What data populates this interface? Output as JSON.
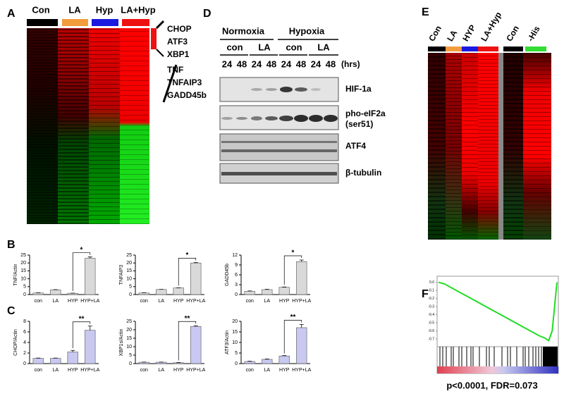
{
  "panel_labels": [
    "A",
    "B",
    "C",
    "D",
    "E",
    "F"
  ],
  "panel_a": {
    "groups": [
      "Con",
      "LA",
      "Hyp",
      "LA+Hyp"
    ],
    "genes": [
      "CHOP",
      "ATF3",
      "XBP1",
      "TNF",
      "TNFAIP3",
      "GADD45b"
    ]
  },
  "panel_d": {
    "conditions": [
      "Normoxia",
      "Hypoxia"
    ],
    "treatments": [
      "con",
      "LA",
      "con",
      "LA"
    ],
    "times": [
      "24",
      "48",
      "24",
      "48",
      "24",
      "48",
      "24",
      "48"
    ],
    "time_unit": "(hrs)",
    "blots": [
      "HIF-1a",
      "pho-eIF2a",
      "ATF4",
      "β-tubulin"
    ],
    "blot_note": "(ser51)"
  },
  "panel_e": {
    "groups": [
      "Con",
      "LA",
      "HYP",
      "LA+Hyp",
      "Con",
      "-His"
    ]
  },
  "panel_f_stats": "p<0.0001, FDR=0.073",
  "chart_data": [
    {
      "type": "bar",
      "ylabel": "TNF/Actin",
      "categories": [
        "con",
        "LA",
        "HYP",
        "HYP+LA"
      ],
      "values": [
        1,
        3,
        0.8,
        23
      ],
      "errors": [
        0.1,
        0.1,
        0.1,
        0.8
      ],
      "color": "#d9d9d9",
      "ylim": [
        0,
        25
      ],
      "yticks": [
        0,
        5,
        10,
        15,
        20,
        25
      ],
      "annotation": "*"
    },
    {
      "type": "bar",
      "ylabel": "TNFAIP3",
      "categories": [
        "con",
        "LA",
        "HYP",
        "HYP+LA"
      ],
      "values": [
        1,
        3.2,
        4.2,
        20
      ],
      "errors": [
        0.1,
        0.1,
        0.1,
        0.3
      ],
      "color": "#d9d9d9",
      "ylim": [
        0,
        25
      ],
      "yticks": [
        0,
        5,
        10,
        15,
        20,
        25
      ],
      "annotation": "*"
    },
    {
      "type": "bar",
      "ylabel": "GADD45b",
      "categories": [
        "con",
        "LA",
        "HYP",
        "HYP+LA"
      ],
      "values": [
        1,
        1.5,
        2.2,
        10
      ],
      "errors": [
        0.1,
        0.1,
        0.1,
        0.5
      ],
      "color": "#d9d9d9",
      "ylim": [
        0,
        12
      ],
      "yticks": [
        0,
        3,
        6,
        9,
        12
      ],
      "annotation": "*"
    },
    {
      "type": "bar",
      "ylabel": "CHOP/Actin",
      "categories": [
        "con",
        "LA",
        "HYP",
        "HYP+LA"
      ],
      "values": [
        1,
        1,
        2.2,
        6.3
      ],
      "errors": [
        0.05,
        0.05,
        0.3,
        0.8
      ],
      "color": "#c8c8f0",
      "ylim": [
        0,
        8
      ],
      "yticks": [
        0,
        2,
        4,
        6,
        8
      ],
      "annotation": "**"
    },
    {
      "type": "bar",
      "ylabel": "XBP1s/Actin",
      "categories": [
        "con",
        "LA",
        "HYP",
        "HYP+LA"
      ],
      "values": [
        0.8,
        0.8,
        0.5,
        22
      ],
      "errors": [
        0.1,
        0.1,
        0.1,
        0.4
      ],
      "color": "#c8c8f0",
      "ylim": [
        0,
        25
      ],
      "yticks": [
        0,
        5,
        10,
        15,
        20,
        25
      ],
      "annotation": "**"
    },
    {
      "type": "bar",
      "ylabel": "ATF3/Actin",
      "categories": [
        "con",
        "LA",
        "HYP",
        "HYP+LA"
      ],
      "values": [
        1,
        2,
        3.6,
        17
      ],
      "errors": [
        0.1,
        0.2,
        0.2,
        1.5
      ],
      "color": "#c8c8f0",
      "ylim": [
        0,
        20
      ],
      "yticks": [
        0,
        5,
        10,
        15,
        20
      ],
      "annotation": "**"
    },
    {
      "type": "line",
      "x": [
        0,
        5,
        10,
        15,
        20,
        25,
        30,
        35,
        40,
        45,
        50,
        55,
        60,
        65,
        70,
        75,
        80,
        85,
        90,
        93,
        96,
        100
      ],
      "values": [
        0,
        -0.02,
        -0.06,
        -0.1,
        -0.14,
        -0.18,
        -0.22,
        -0.26,
        -0.3,
        -0.34,
        -0.38,
        -0.42,
        -0.46,
        -0.5,
        -0.54,
        -0.58,
        -0.62,
        -0.66,
        -0.69,
        -0.72,
        -0.6,
        0
      ],
      "color": "#22dd22",
      "xlim": [
        0,
        100
      ],
      "ylim": [
        -0.76,
        0.04
      ],
      "yticks": [
        {
          "value": 0,
          "label": "0.0"
        },
        -0.1,
        -0.2,
        -0.3,
        -0.4,
        -0.5,
        -0.6,
        -0.7
      ]
    }
  ]
}
